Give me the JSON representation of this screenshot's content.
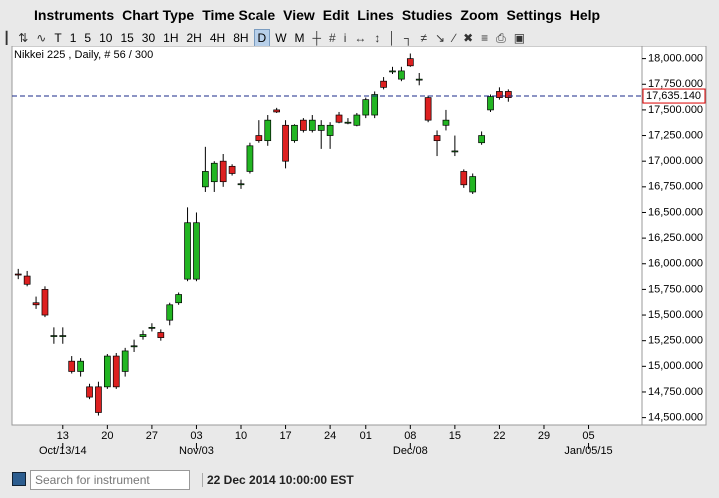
{
  "menu": [
    "Instruments",
    "Chart Type",
    "Time Scale",
    "View",
    "Edit",
    "Lines",
    "Studies",
    "Zoom",
    "Settings",
    "Help"
  ],
  "toolbar": [
    "T",
    "1",
    "5",
    "10",
    "15",
    "30",
    "1H",
    "2H",
    "4H",
    "8H",
    "D",
    "W",
    "M"
  ],
  "toolbar_selected": "D",
  "chart_data": {
    "type": "candlestick",
    "title": "Nikkei 225 , Daily, # 56 / 300",
    "candles": [
      [
        15900,
        15950,
        15850,
        15890
      ],
      [
        15880,
        15930,
        15780,
        15800
      ],
      [
        15620,
        15680,
        15560,
        15600
      ],
      [
        15750,
        15780,
        15480,
        15500
      ],
      [
        15300,
        15380,
        15220,
        15300
      ],
      [
        15300,
        15380,
        15220,
        15300
      ],
      [
        15050,
        15100,
        14930,
        14950
      ],
      [
        14950,
        15080,
        14900,
        15050
      ],
      [
        14800,
        14830,
        14680,
        14700
      ],
      [
        14800,
        14850,
        14520,
        14550
      ],
      [
        14800,
        15120,
        14780,
        15100
      ],
      [
        15100,
        15130,
        14780,
        14800
      ],
      [
        14950,
        15180,
        14900,
        15150
      ],
      [
        15200,
        15260,
        15140,
        15200
      ],
      [
        15290,
        15350,
        15260,
        15310
      ],
      [
        15380,
        15420,
        15340,
        15380
      ],
      [
        15330,
        15360,
        15250,
        15280
      ],
      [
        15450,
        15620,
        15400,
        15600
      ],
      [
        15620,
        15720,
        15600,
        15700
      ],
      [
        15850,
        16550,
        15830,
        16400
      ],
      [
        15850,
        16500,
        15830,
        16400
      ],
      [
        16750,
        17140,
        16700,
        16900
      ],
      [
        16800,
        17000,
        16700,
        16980
      ],
      [
        17000,
        17070,
        16750,
        16800
      ],
      [
        16950,
        16970,
        16860,
        16880
      ],
      [
        16780,
        16820,
        16730,
        16780
      ],
      [
        16900,
        17180,
        16880,
        17150
      ],
      [
        17250,
        17400,
        17180,
        17200
      ],
      [
        17200,
        17450,
        17150,
        17400
      ],
      [
        17500,
        17520,
        17470,
        17480
      ],
      [
        17350,
        17400,
        16930,
        17000
      ],
      [
        17200,
        17360,
        17180,
        17350
      ],
      [
        17400,
        17420,
        17280,
        17300
      ],
      [
        17300,
        17450,
        17280,
        17400
      ],
      [
        17300,
        17400,
        17120,
        17350
      ],
      [
        17250,
        17380,
        17120,
        17350
      ],
      [
        17450,
        17480,
        17370,
        17380
      ],
      [
        17380,
        17420,
        17360,
        17380
      ],
      [
        17350,
        17470,
        17340,
        17450
      ],
      [
        17450,
        17620,
        17420,
        17600
      ],
      [
        17450,
        17680,
        17420,
        17650
      ],
      [
        17780,
        17820,
        17700,
        17720
      ],
      [
        17880,
        17920,
        17850,
        17880
      ],
      [
        17800,
        17920,
        17780,
        17880
      ],
      [
        18000,
        18050,
        17920,
        17930
      ],
      [
        17800,
        17860,
        17740,
        17800
      ],
      [
        17620,
        17640,
        17380,
        17400
      ],
      [
        17250,
        17300,
        17050,
        17200
      ],
      [
        17350,
        17500,
        17300,
        17400
      ],
      [
        17100,
        17250,
        17050,
        17100
      ],
      [
        16900,
        16920,
        16740,
        16770
      ],
      [
        16700,
        16880,
        16680,
        16850
      ],
      [
        17180,
        17290,
        17160,
        17250
      ],
      [
        17500,
        17650,
        17480,
        17630
      ],
      [
        17680,
        17720,
        17600,
        17620
      ],
      [
        17680,
        17700,
        17580,
        17620
      ]
    ],
    "up_color": "#22b522",
    "down_color": "#dd2020",
    "last_price": {
      "value": 17635.14,
      "label": "17,635.140"
    },
    "xlim": [
      -0.7,
      70
    ],
    "xticks": [
      {
        "value": 5,
        "label": "13"
      },
      {
        "value": 10,
        "label": "20"
      },
      {
        "value": 15,
        "label": "27"
      },
      {
        "value": 20,
        "label": "03"
      },
      {
        "value": 25,
        "label": "10"
      },
      {
        "value": 30,
        "label": "17"
      },
      {
        "value": 35,
        "label": "24"
      },
      {
        "value": 39,
        "label": "01"
      },
      {
        "value": 44,
        "label": "08"
      },
      {
        "value": 49,
        "label": "15"
      },
      {
        "value": 54,
        "label": "22"
      },
      {
        "value": 59,
        "label": "29"
      },
      {
        "value": 64,
        "label": "05"
      }
    ],
    "x_period_ticks": [
      {
        "value": 5,
        "label": "Oct/13/14"
      },
      {
        "value": 20,
        "label": "Nov/03"
      },
      {
        "value": 44,
        "label": "Dec/08"
      },
      {
        "value": 64,
        "label": "Jan/05/15"
      }
    ],
    "ylim": [
      14428,
      18123
    ],
    "yticks": [
      {
        "value": 14500,
        "label": "14,500.000"
      },
      {
        "value": 14750,
        "label": "14,750.000"
      },
      {
        "value": 15000,
        "label": "15,000.000"
      },
      {
        "value": 15250,
        "label": "15,250.000"
      },
      {
        "value": 15500,
        "label": "15,500.000"
      },
      {
        "value": 15750,
        "label": "15,750.000"
      },
      {
        "value": 16000,
        "label": "16,000.000"
      },
      {
        "value": 16250,
        "label": "16,250.000"
      },
      {
        "value": 16500,
        "label": "16,500.000"
      },
      {
        "value": 16750,
        "label": "16,750.000"
      },
      {
        "value": 17000,
        "label": "17,000.000"
      },
      {
        "value": 17250,
        "label": "17,250.000"
      },
      {
        "value": 17500,
        "label": "17,500.000"
      },
      {
        "value": 17750,
        "label": "17,750.000"
      },
      {
        "value": 18000,
        "label": "18,000.000"
      }
    ]
  },
  "status": {
    "search_placeholder": "Search for instrument",
    "timestamp": "22 Dec 2014 10:00:00 EST"
  }
}
